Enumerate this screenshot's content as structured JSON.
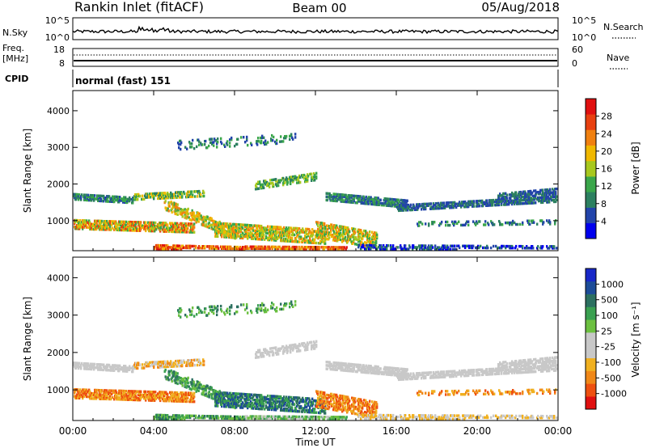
{
  "header": {
    "station": "Rankin Inlet (fitACF)",
    "beam": "Beam 00",
    "date": "05/Aug/2018"
  },
  "top_strips": {
    "nsky_label": "N.Sky",
    "nsky_ticks": [
      "10^5",
      "10^0"
    ],
    "nsearch_label": "N.Search",
    "nsearch_ticks": [
      "10^5",
      "10^0"
    ],
    "freq_label_line1": "Freq.",
    "freq_label_line2": "[MHz]",
    "freq_ticks": [
      "18",
      "8"
    ],
    "nave_label": "Nave",
    "nave_ticks": [
      "60",
      "0"
    ],
    "cpid_label": "CPID",
    "cpid_value": "normal (fast) 151"
  },
  "x_axis": {
    "title": "Time UT",
    "ticks": [
      "00:00",
      "04:00",
      "08:00",
      "12:00",
      "16:00",
      "20:00",
      "00:00"
    ]
  },
  "colors": {
    "power": [
      "#0000ee",
      "#2244aa",
      "#2c8060",
      "#3aa64a",
      "#a8c81e",
      "#f0b800",
      "#f08010",
      "#e84010",
      "#e01010"
    ],
    "velocity": [
      "#e01010",
      "#ee5010",
      "#f08818",
      "#f0b020",
      "#c8c8c8",
      "#c8c8c8",
      "#6cc040",
      "#3aa050",
      "#2c7060",
      "#1c4c98",
      "#1828c8"
    ]
  },
  "chart_data": [
    {
      "type": "heatmap",
      "name": "power",
      "xlabel": "Time UT",
      "ylabel": "Slant Range [km]",
      "xlim": [
        0,
        24
      ],
      "ylim": [
        180,
        4550
      ],
      "yticks": [
        "1000",
        "2000",
        "3000",
        "4000"
      ],
      "colorbar": {
        "label": "Power [dB]",
        "ticks": [
          "28",
          "24",
          "20",
          "16",
          "12",
          "8",
          "4"
        ],
        "range": [
          0,
          32
        ]
      }
    },
    {
      "type": "heatmap",
      "name": "velocity",
      "xlabel": "Time UT",
      "ylabel": "Slant Range [km]",
      "xlim": [
        0,
        24
      ],
      "ylim": [
        180,
        4550
      ],
      "yticks": [
        "1000",
        "2000",
        "3000",
        "4000"
      ],
      "colorbar": {
        "label": "Velocity [m s⁻¹]",
        "ticks": [
          "1000",
          "500",
          "100",
          "25",
          "-25",
          "-100",
          "-500",
          "-1000"
        ],
        "range": [
          -1200,
          1200
        ]
      }
    }
  ]
}
